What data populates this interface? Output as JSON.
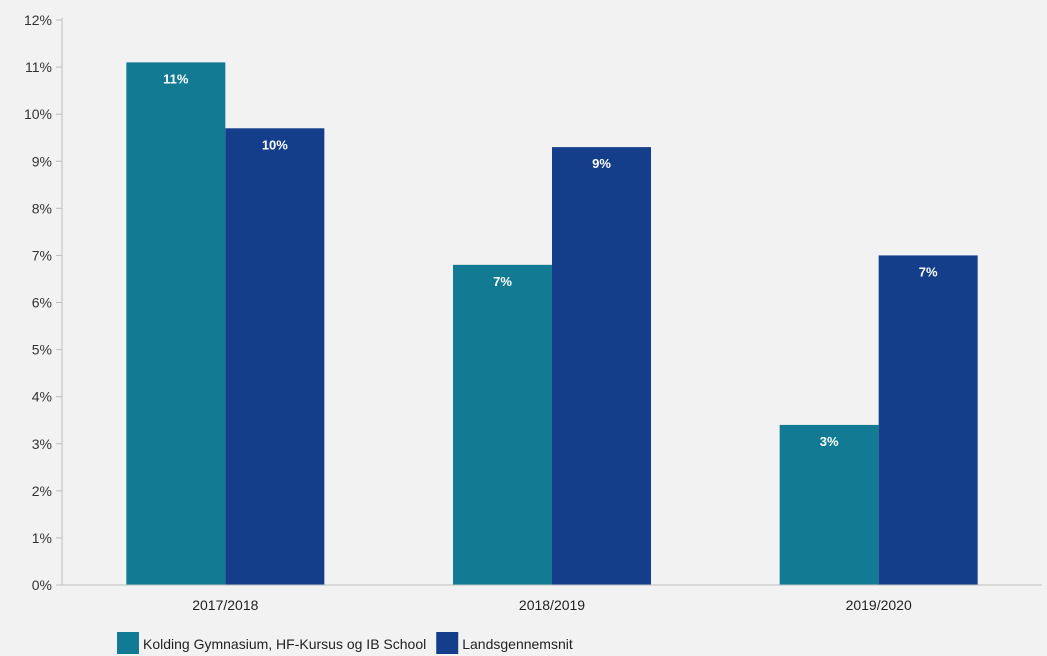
{
  "chart_data": {
    "type": "bar",
    "categories": [
      "2017/2018",
      "2018/2019",
      "2019/2020"
    ],
    "series": [
      {
        "name": "Kolding Gymnasium, HF-Kursus og IB School",
        "color": "#127b93",
        "values": [
          11.1,
          6.8,
          3.4
        ],
        "labels": [
          "11%",
          "7%",
          "3%"
        ]
      },
      {
        "name": "Landsgennemsnit",
        "color": "#143d8a",
        "values": [
          9.7,
          9.3,
          7.0
        ],
        "labels": [
          "10%",
          "9%",
          "7%"
        ]
      }
    ],
    "ylim": [
      0,
      12
    ],
    "yticks": [
      {
        "value": 0,
        "label": "0%"
      },
      {
        "value": 1,
        "label": "1%"
      },
      {
        "value": 2,
        "label": "2%"
      },
      {
        "value": 3,
        "label": "3%"
      },
      {
        "value": 4,
        "label": "4%"
      },
      {
        "value": 5,
        "label": "5%"
      },
      {
        "value": 6,
        "label": "6%"
      },
      {
        "value": 7,
        "label": "7%"
      },
      {
        "value": 8,
        "label": "8%"
      },
      {
        "value": 9,
        "label": "9%"
      },
      {
        "value": 10,
        "label": "10%"
      },
      {
        "value": 11,
        "label": "11%"
      },
      {
        "value": 12,
        "label": "12%"
      }
    ],
    "title": "",
    "xlabel": "",
    "ylabel": "",
    "grid": false,
    "legend_position": "bottom-left"
  }
}
